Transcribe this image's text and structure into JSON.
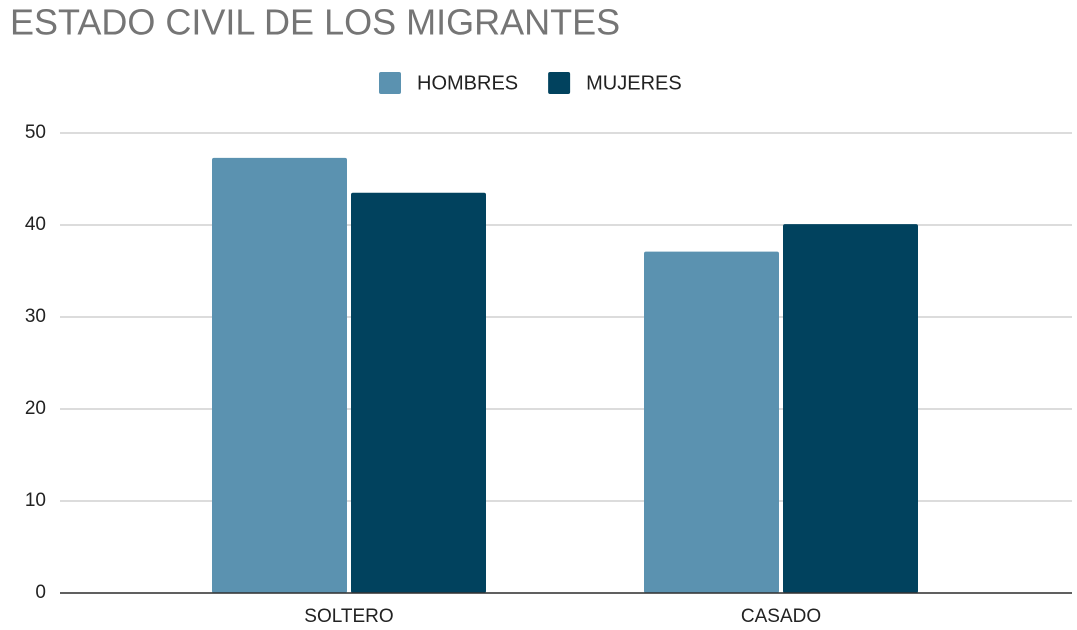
{
  "chart_data": {
    "type": "bar",
    "title": "ESTADO CIVIL DE LOS MIGRANTES",
    "categories": [
      "SOLTERO",
      "CASADO"
    ],
    "series": [
      {
        "name": "HOMBRES",
        "color": "#5b92b0",
        "values": [
          47.3,
          37.1
        ]
      },
      {
        "name": "MUJERES",
        "color": "#01425e",
        "values": [
          43.5,
          40.1
        ]
      }
    ],
    "ylim": [
      0,
      50
    ],
    "yticks": [
      0,
      10,
      20,
      30,
      40,
      50
    ],
    "grid": true,
    "legend": "top"
  }
}
